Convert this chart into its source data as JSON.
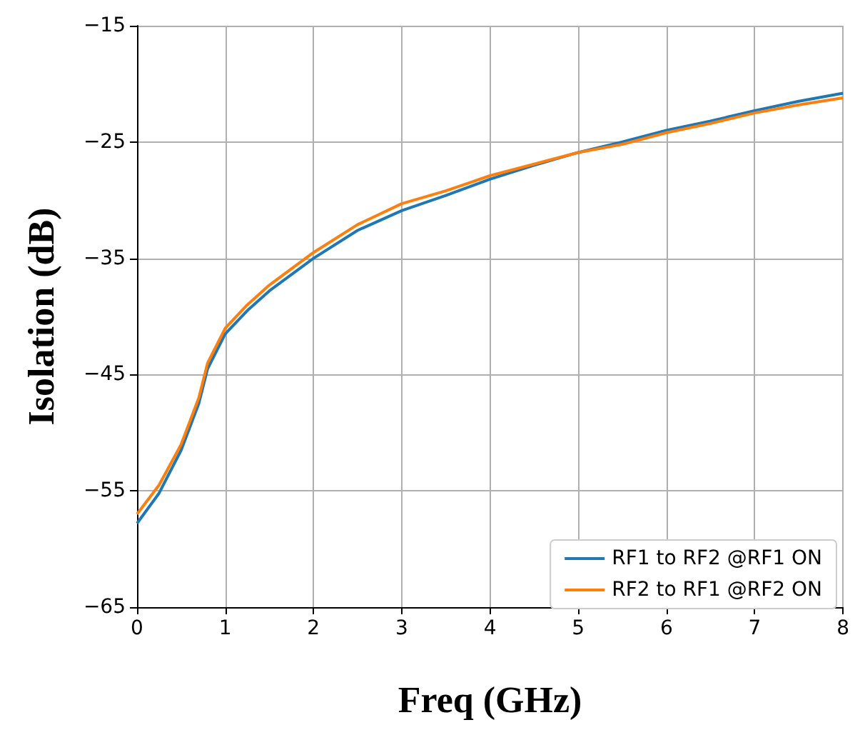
{
  "chart_data": {
    "type": "line",
    "xlabel": "Freq (GHz)",
    "ylabel": "Isolation (dB)",
    "x": [
      0,
      0.25,
      0.5,
      0.7,
      0.8,
      1,
      1.25,
      1.5,
      2,
      2.5,
      3,
      3.5,
      4,
      4.5,
      5,
      5.5,
      6,
      6.5,
      7,
      7.5,
      8
    ],
    "series": [
      {
        "name": "RF1 to RF2 @RF1 ON",
        "color": "#1f77b4",
        "values": [
          -57.8,
          -55.2,
          -51.5,
          -47.5,
          -44.5,
          -41.5,
          -39.5,
          -37.8,
          -35,
          -32.6,
          -30.9,
          -29.6,
          -28.2,
          -27,
          -25.9,
          -25,
          -24,
          -23.2,
          -22.3,
          -21.5,
          -20.8
        ]
      },
      {
        "name": "RF2 to RF1 @RF2 ON",
        "color": "#ff7f0e",
        "values": [
          -57,
          -54.5,
          -51,
          -47,
          -44,
          -41,
          -39,
          -37.3,
          -34.5,
          -32.1,
          -30.3,
          -29.2,
          -27.9,
          -26.9,
          -25.9,
          -25.2,
          -24.2,
          -23.4,
          -22.5,
          -21.8,
          -21.2
        ]
      }
    ],
    "xlim": [
      0,
      8
    ],
    "xticks": [
      0,
      1,
      2,
      3,
      4,
      5,
      6,
      7,
      8
    ],
    "ylim": [
      -65,
      -15
    ],
    "yticks": [
      -65,
      -55,
      -45,
      -35,
      -25,
      -15
    ],
    "grid": true,
    "legend": "bottom right",
    "marker": "none",
    "line_style": "solid"
  }
}
